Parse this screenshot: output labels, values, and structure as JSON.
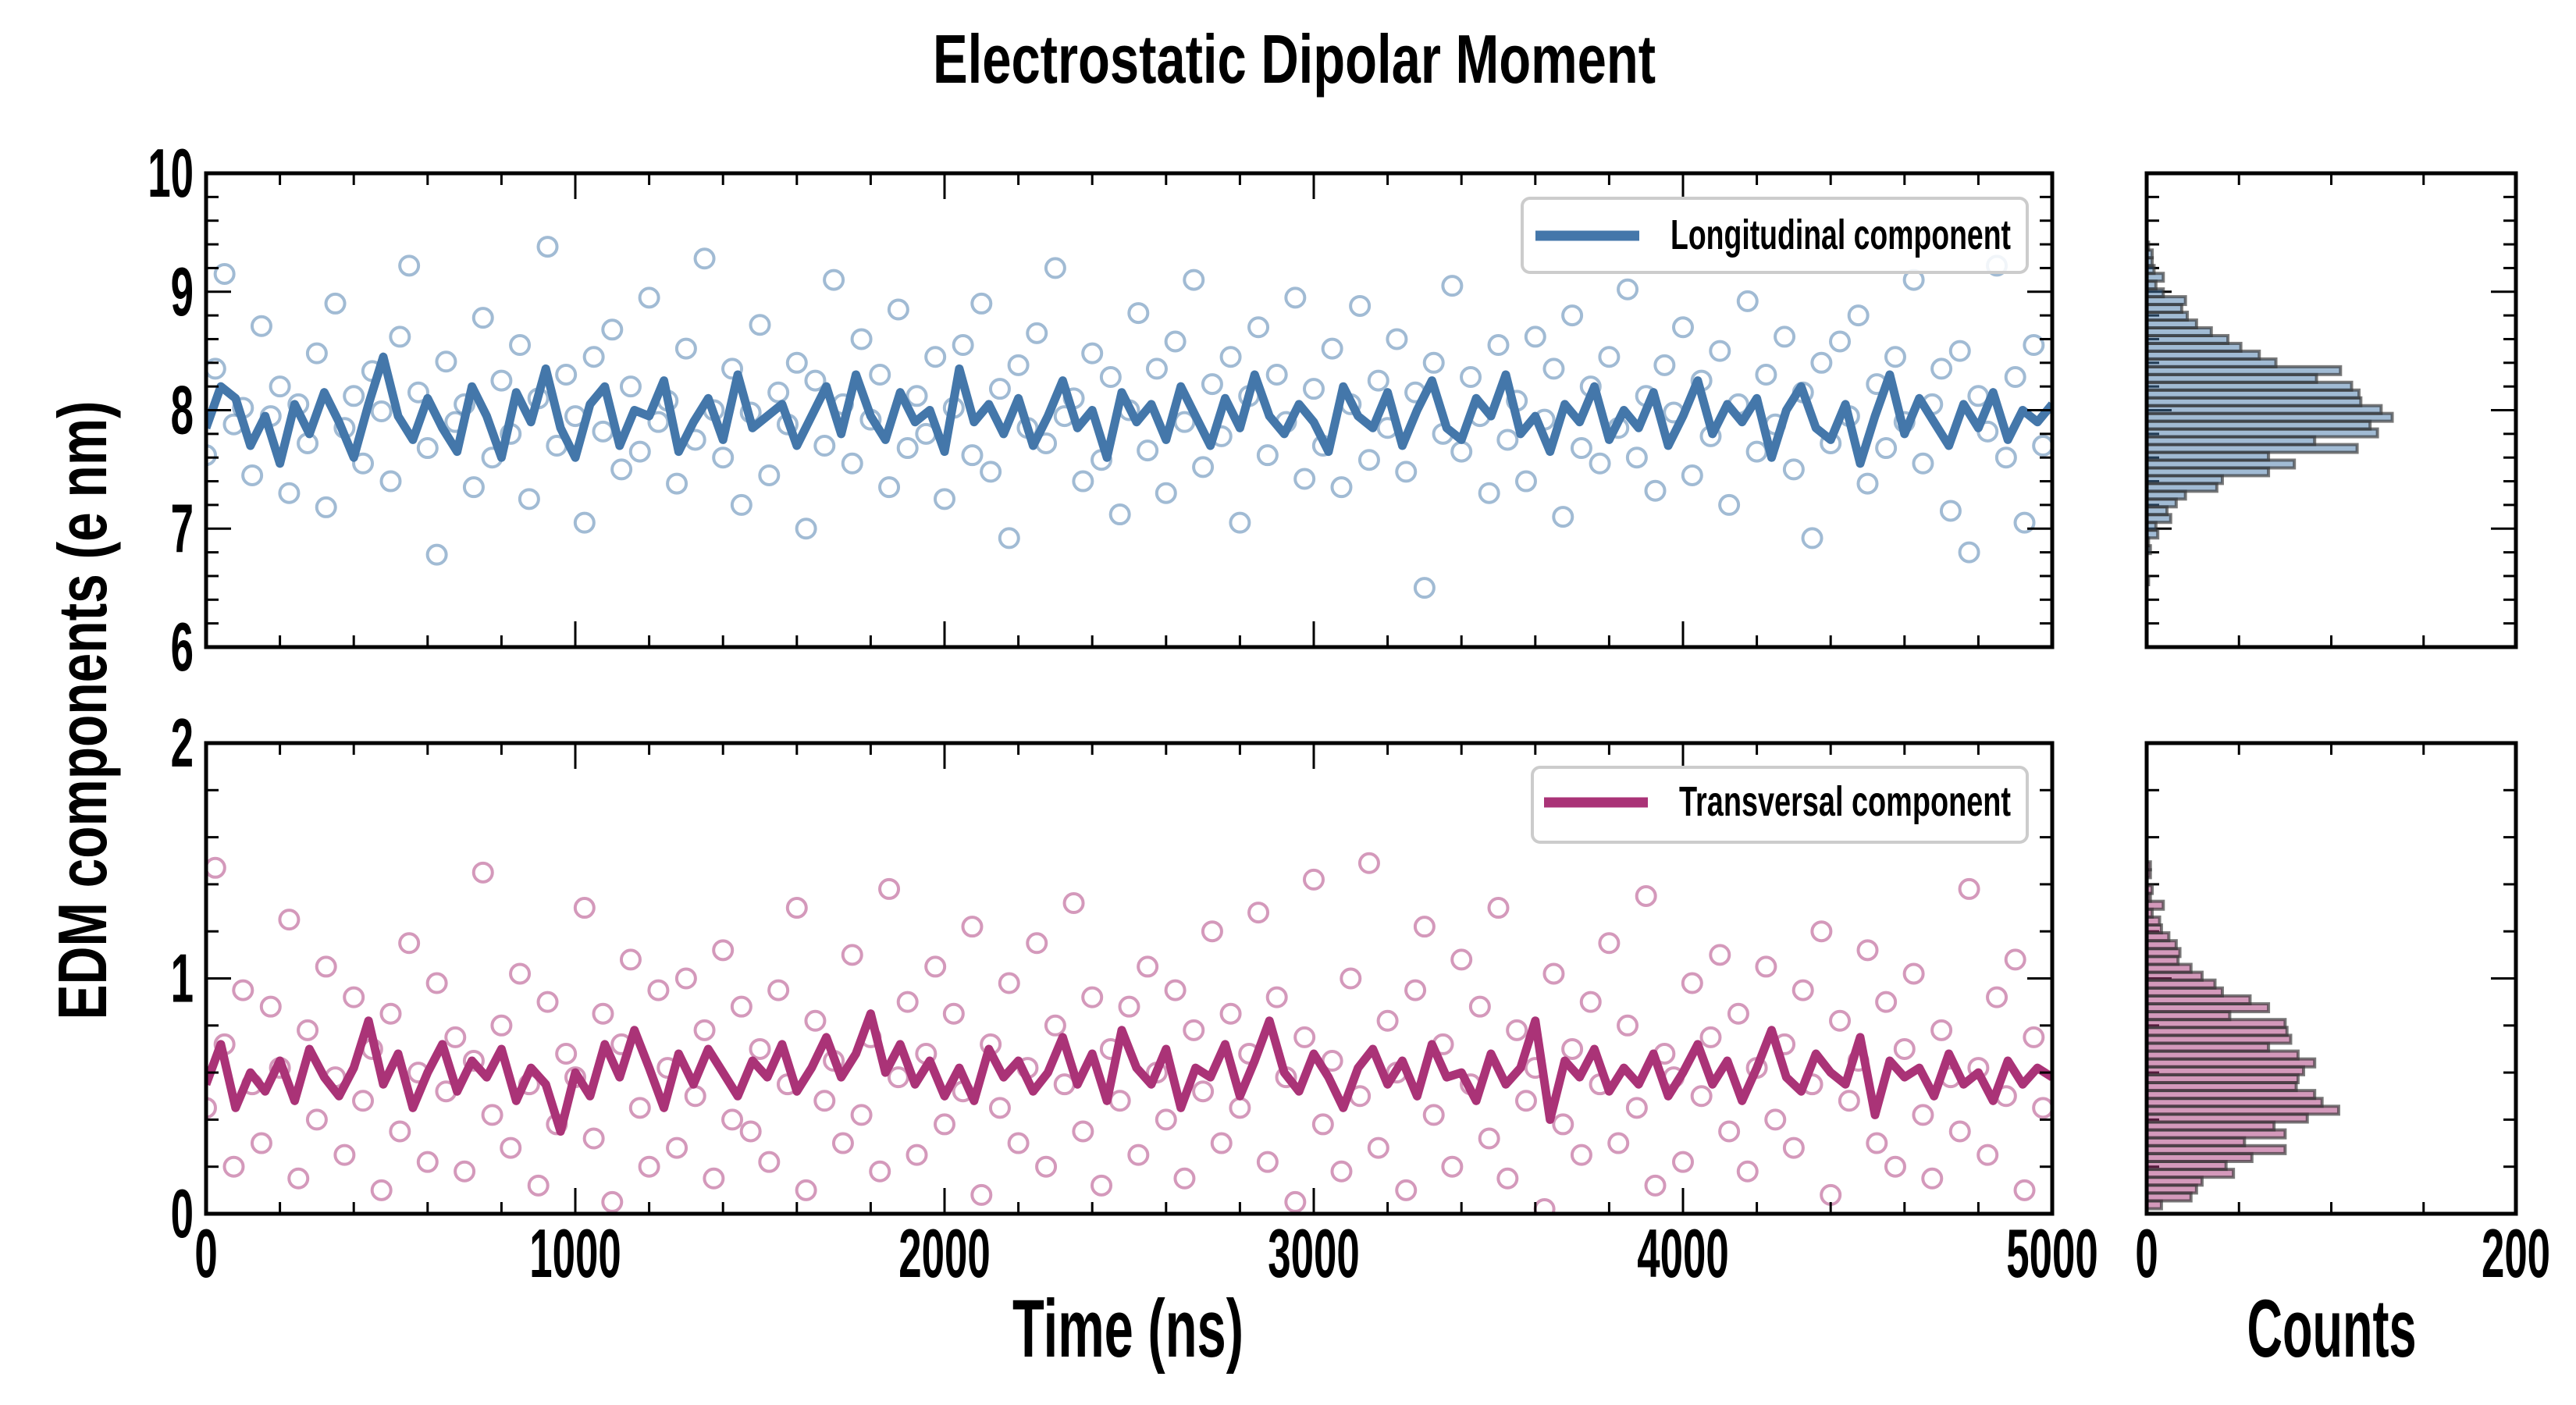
{
  "chart_data": {
    "type": "scatter",
    "title": "Electrostatic Dipolar Moment",
    "ylabel": "EDM components (e nm)",
    "colors": {
      "longitudinal": "#4477aa",
      "transversal": "#aa3377",
      "hist_edge": "#333333"
    },
    "panels": [
      {
        "name": "longitudinal",
        "legend": "Longitudinal component",
        "legend_position": "top-right",
        "xlabel": "Time (ns)",
        "xlim": [
          0,
          5000
        ],
        "ylim": [
          6,
          10
        ],
        "xticks": [
          0,
          1000,
          2000,
          3000,
          4000,
          5000
        ],
        "yticks": [
          6,
          7,
          8,
          9,
          10
        ],
        "scatter": {
          "t_start": 0,
          "t_step": 25,
          "y": [
            7.62,
            8.35,
            9.15,
            7.88,
            8.02,
            7.45,
            8.71,
            7.95,
            8.2,
            7.3,
            8.05,
            7.72,
            8.48,
            7.18,
            8.9,
            7.85,
            8.12,
            7.55,
            8.33,
            7.99,
            7.4,
            8.62,
            9.22,
            8.15,
            7.68,
            6.78,
            8.41,
            7.9,
            8.05,
            7.35,
            8.78,
            7.6,
            8.25,
            7.8,
            8.55,
            7.25,
            8.1,
            9.38,
            7.7,
            8.3,
            7.95,
            7.05,
            8.45,
            7.82,
            8.68,
            7.5,
            8.2,
            7.65,
            8.95,
            7.9,
            8.08,
            7.38,
            8.52,
            7.75,
            9.28,
            8.0,
            7.6,
            8.35,
            7.2,
            7.98,
            8.72,
            7.45,
            8.15,
            7.88,
            8.4,
            7.0,
            8.25,
            7.7,
            9.1,
            8.05,
            7.55,
            8.6,
            7.92,
            8.3,
            7.35,
            8.85,
            7.68,
            8.12,
            7.8,
            8.45,
            7.25,
            8.02,
            8.55,
            7.62,
            8.9,
            7.48,
            8.18,
            6.92,
            8.38,
            7.85,
            8.65,
            7.72,
            9.2,
            7.95,
            8.1,
            7.4,
            8.48,
            7.58,
            8.28,
            7.12,
            8.0,
            8.82,
            7.66,
            8.35,
            7.3,
            8.58,
            7.9,
            9.1,
            7.52,
            8.22,
            7.78,
            8.45,
            7.05,
            8.12,
            8.7,
            7.62,
            8.3,
            7.9,
            8.95,
            7.42,
            8.18,
            7.7,
            8.52,
            7.35,
            8.05,
            8.88,
            7.58,
            8.25,
            7.85,
            8.6,
            7.48,
            8.15,
            6.5,
            8.4,
            7.8,
            9.05,
            7.65,
            8.28,
            7.95,
            7.3,
            8.55,
            7.75,
            8.08,
            7.4,
            8.62,
            7.92,
            8.35,
            7.1,
            8.8,
            7.68,
            8.2,
            7.55,
            8.45,
            7.85,
            9.02,
            7.6,
            8.12,
            7.32,
            8.38,
            7.98,
            8.7,
            7.45,
            8.25,
            7.78,
            8.5,
            7.2,
            8.05,
            8.92,
            7.65,
            8.3,
            7.88,
            8.62,
            7.5,
            8.15,
            6.92,
            8.4,
            7.72,
            8.58,
            7.95,
            8.8,
            7.38,
            8.22,
            7.68,
            8.45,
            7.9,
            9.1,
            7.55,
            8.05,
            8.35,
            7.15,
            8.5,
            6.8,
            8.12,
            7.82,
            9.22,
            7.6,
            8.28,
            7.05,
            8.55,
            7.7
          ]
        },
        "line": {
          "t_start": 0,
          "t_step": 40,
          "y": [
            7.85,
            8.2,
            8.1,
            7.7,
            7.95,
            7.55,
            8.05,
            7.8,
            8.15,
            7.9,
            7.6,
            8.05,
            8.45,
            7.95,
            7.75,
            8.1,
            7.85,
            7.65,
            8.2,
            7.95,
            7.6,
            8.15,
            7.9,
            8.35,
            7.85,
            7.6,
            8.05,
            8.2,
            7.7,
            8.0,
            7.95,
            8.25,
            7.65,
            7.9,
            8.1,
            7.75,
            8.3,
            7.85,
            7.95,
            8.05,
            7.7,
            7.95,
            8.2,
            7.8,
            8.3,
            7.95,
            7.75,
            8.15,
            7.9,
            8.0,
            7.65,
            8.35,
            7.9,
            8.05,
            7.8,
            8.1,
            7.7,
            7.95,
            8.25,
            7.85,
            8.0,
            7.6,
            8.15,
            7.9,
            8.05,
            7.75,
            8.2,
            7.95,
            7.7,
            8.1,
            7.85,
            8.3,
            7.95,
            7.8,
            8.05,
            7.9,
            7.65,
            8.2,
            7.95,
            7.85,
            8.15,
            7.7,
            8.0,
            8.25,
            7.85,
            7.75,
            8.1,
            7.95,
            8.3,
            7.8,
            7.95,
            7.65,
            8.05,
            7.9,
            8.2,
            7.75,
            8.0,
            7.85,
            8.15,
            7.7,
            7.95,
            8.25,
            7.8,
            8.05,
            7.9,
            8.1,
            7.6,
            8.0,
            8.2,
            7.85,
            7.75,
            8.05,
            7.55,
            7.95,
            8.3,
            7.8,
            8.1,
            7.9,
            7.7,
            8.05,
            7.85,
            8.15,
            7.75,
            8.0,
            7.9,
            8.05
          ]
        },
        "histogram": {
          "xlabel": "Counts",
          "xlim": [
            0,
            200
          ],
          "xticks": [
            0,
            200
          ],
          "bin_start": 6.56,
          "bin_width": 0.0657,
          "counts": [
            1,
            0,
            0,
            0,
            2,
            1,
            6,
            5,
            13,
            11,
            16,
            21,
            38,
            41,
            66,
            80,
            66,
            114,
            91,
            125,
            121,
            133,
            127,
            116,
            115,
            111,
            92,
            105,
            70,
            61,
            51,
            44,
            35,
            27,
            22,
            19,
            21,
            9,
            5,
            9,
            4,
            3,
            3,
            1
          ]
        }
      },
      {
        "name": "transversal",
        "legend": "Transversal component",
        "legend_position": "top-right",
        "xlabel": "Time (ns)",
        "xlim": [
          0,
          5000
        ],
        "ylim": [
          0,
          2
        ],
        "xticks": [
          0,
          1000,
          2000,
          3000,
          4000,
          5000
        ],
        "yticks": [
          0,
          1,
          2
        ],
        "scatter": {
          "t_start": 0,
          "t_step": 25,
          "y": [
            0.45,
            1.47,
            0.72,
            0.2,
            0.95,
            0.55,
            0.3,
            0.88,
            0.62,
            1.25,
            0.15,
            0.78,
            0.4,
            1.05,
            0.58,
            0.25,
            0.92,
            0.48,
            0.7,
            0.1,
            0.85,
            0.35,
            1.15,
            0.6,
            0.22,
            0.98,
            0.52,
            0.75,
            0.18,
            0.65,
            1.45,
            0.42,
            0.8,
            0.28,
            1.02,
            0.55,
            0.12,
            0.9,
            0.38,
            0.68,
            0.58,
            1.3,
            0.32,
            0.85,
            0.05,
            0.72,
            1.08,
            0.45,
            0.2,
            0.95,
            0.62,
            0.28,
            1.0,
            0.5,
            0.78,
            0.15,
            1.12,
            0.4,
            0.88,
            0.35,
            0.7,
            0.22,
            0.95,
            0.55,
            1.3,
            0.1,
            0.82,
            0.48,
            0.65,
            0.3,
            1.1,
            0.42,
            0.75,
            0.18,
            1.38,
            0.58,
            0.9,
            0.25,
            0.68,
            1.05,
            0.38,
            0.85,
            0.52,
            1.22,
            0.08,
            0.72,
            0.45,
            0.98,
            0.3,
            0.62,
            1.15,
            0.2,
            0.8,
            0.55,
            1.32,
            0.35,
            0.92,
            0.12,
            0.7,
            0.48,
            0.88,
            0.25,
            1.05,
            0.6,
            0.4,
            0.95,
            0.15,
            0.78,
            0.52,
            1.2,
            0.3,
            0.85,
            0.45,
            0.68,
            1.28,
            0.22,
            0.92,
            0.58,
            0.05,
            0.75,
            1.42,
            0.38,
            0.65,
            0.18,
            1.0,
            0.5,
            1.49,
            0.28,
            0.82,
            0.6,
            0.1,
            0.95,
            1.22,
            0.42,
            0.72,
            0.2,
            1.08,
            0.55,
            0.88,
            0.32,
            1.3,
            0.15,
            0.78,
            0.48,
            0.62,
            0.02,
            1.02,
            0.38,
            0.7,
            0.25,
            0.9,
            0.55,
            1.15,
            0.3,
            0.8,
            0.45,
            1.35,
            0.12,
            0.68,
            0.58,
            0.22,
            0.98,
            0.5,
            0.75,
            1.1,
            0.35,
            0.85,
            0.18,
            0.62,
            1.05,
            0.4,
            0.72,
            0.28,
            0.95,
            0.55,
            1.2,
            0.08,
            0.82,
            0.48,
            0.65,
            1.12,
            0.3,
            0.9,
            0.2,
            0.7,
            1.02,
            0.42,
            0.15,
            0.78,
            0.58,
            0.35,
            1.38,
            0.62,
            0.25,
            0.92,
            0.5,
            1.08,
            0.1,
            0.75,
            0.45
          ]
        },
        "line": {
          "t_start": 0,
          "t_step": 40,
          "y": [
            0.55,
            0.72,
            0.45,
            0.6,
            0.52,
            0.65,
            0.48,
            0.7,
            0.58,
            0.5,
            0.62,
            0.82,
            0.55,
            0.68,
            0.45,
            0.6,
            0.72,
            0.52,
            0.65,
            0.58,
            0.7,
            0.48,
            0.62,
            0.55,
            0.35,
            0.6,
            0.5,
            0.72,
            0.58,
            0.78,
            0.62,
            0.45,
            0.68,
            0.55,
            0.7,
            0.6,
            0.5,
            0.65,
            0.58,
            0.72,
            0.52,
            0.62,
            0.75,
            0.58,
            0.68,
            0.85,
            0.6,
            0.72,
            0.55,
            0.65,
            0.5,
            0.62,
            0.48,
            0.7,
            0.58,
            0.65,
            0.52,
            0.6,
            0.75,
            0.55,
            0.68,
            0.48,
            0.78,
            0.62,
            0.55,
            0.7,
            0.45,
            0.62,
            0.58,
            0.72,
            0.5,
            0.65,
            0.82,
            0.6,
            0.52,
            0.68,
            0.58,
            0.45,
            0.62,
            0.7,
            0.55,
            0.65,
            0.5,
            0.72,
            0.58,
            0.6,
            0.48,
            0.68,
            0.55,
            0.62,
            0.82,
            0.4,
            0.65,
            0.58,
            0.7,
            0.52,
            0.62,
            0.55,
            0.68,
            0.5,
            0.6,
            0.72,
            0.55,
            0.65,
            0.48,
            0.62,
            0.78,
            0.58,
            0.52,
            0.68,
            0.6,
            0.55,
            0.75,
            0.42,
            0.65,
            0.58,
            0.62,
            0.5,
            0.68,
            0.55,
            0.6,
            0.48,
            0.65,
            0.55,
            0.62,
            0.58
          ]
        },
        "histogram": {
          "xlabel": "Counts",
          "xlim": [
            0,
            200
          ],
          "xticks": [
            0,
            200
          ],
          "bin_start": 0.038,
          "bin_width": 0.0335,
          "counts": [
            8,
            24,
            27,
            30,
            47,
            43,
            57,
            75,
            53,
            75,
            69,
            87,
            104,
            95,
            91,
            81,
            82,
            85,
            91,
            82,
            66,
            78,
            76,
            75,
            45,
            66,
            56,
            41,
            37,
            30,
            24,
            17,
            18,
            16,
            12,
            8,
            7,
            3,
            9,
            2,
            3,
            0,
            2,
            2
          ]
        }
      }
    ]
  }
}
